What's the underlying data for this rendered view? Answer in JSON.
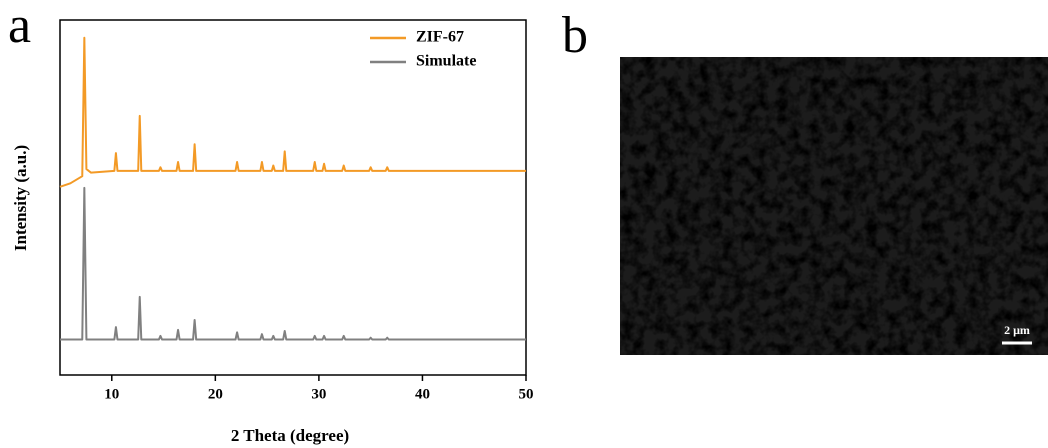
{
  "chart_data": {
    "type": "line",
    "x": [
      5,
      6,
      7.15,
      7.35,
      7.55,
      8,
      10.25,
      10.4,
      10.55,
      12.55,
      12.7,
      12.85,
      14.55,
      14.7,
      14.85,
      16.25,
      16.4,
      16.55,
      17.85,
      18.0,
      18.15,
      21.95,
      22.1,
      22.25,
      24.35,
      24.5,
      24.65,
      25.45,
      25.6,
      25.75,
      26.55,
      26.7,
      26.85,
      29.45,
      29.6,
      29.75,
      30.35,
      30.5,
      30.65,
      32.25,
      32.4,
      32.55,
      34.85,
      35.0,
      35.15,
      36.45,
      36.6,
      36.75,
      50
    ],
    "series": [
      {
        "name": "ZIF-67",
        "color": "#f39a26",
        "values": [
          53,
          54,
          56,
          95,
          58,
          57,
          57.5,
          62.5,
          57.5,
          57.5,
          73,
          57.5,
          57.5,
          58.5,
          57.5,
          57.5,
          60,
          57.5,
          57.5,
          65,
          57.5,
          57.5,
          60,
          57.5,
          57.5,
          60,
          57.5,
          57.5,
          59,
          57.5,
          57.5,
          63,
          57.5,
          57.5,
          60,
          57.5,
          57.5,
          59.5,
          57.5,
          57.5,
          59,
          57.5,
          57.5,
          58.5,
          57.5,
          57.5,
          58.5,
          57.5,
          57.5
        ]
      },
      {
        "name": "Simulate",
        "color": "#808080",
        "values": [
          10,
          10,
          10,
          52.7,
          10,
          10,
          10,
          13.5,
          10,
          10,
          22,
          10,
          10,
          11,
          10,
          10,
          12.7,
          10,
          10,
          15.5,
          10,
          10,
          12,
          10,
          10,
          11.5,
          10,
          10,
          11,
          10,
          10,
          12.4,
          10,
          10,
          11,
          10,
          10,
          11,
          10,
          10,
          11,
          10,
          10,
          10.5,
          10,
          10,
          10.5,
          10,
          10
        ]
      }
    ],
    "xlabel": "2 Theta (degree)",
    "ylabel": "Intensity (a.u.)",
    "xlim": [
      5,
      50
    ],
    "xticks": [
      10,
      20,
      30,
      40,
      50
    ],
    "ylim": [
      0,
      100
    ],
    "legend": "upper right"
  },
  "panel_labels": [
    "a",
    "b"
  ],
  "sem_image": {
    "scale_bar": "2 μm"
  }
}
